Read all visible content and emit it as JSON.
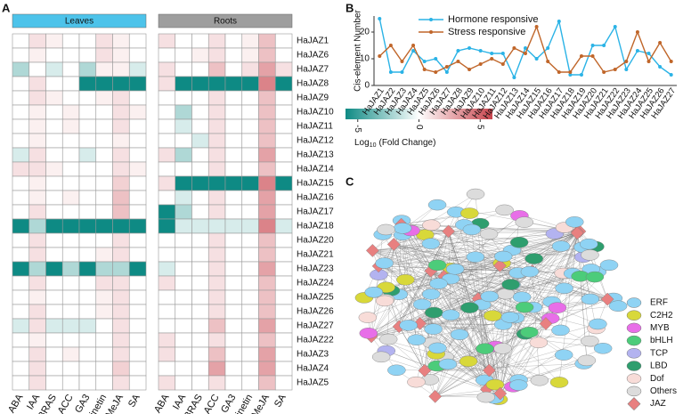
{
  "chart_data": [
    {
      "type": "heatmap",
      "panel": "A",
      "rows": [
        "HaJAZ1",
        "HaJAZ6",
        "HaJAZ7",
        "HaJAZ8",
        "HaJAZ9",
        "HaJAZ10",
        "HaJAZ11",
        "HaJAZ12",
        "HaJAZ13",
        "HaJAZ14",
        "HaJAZ15",
        "HaJAZ16",
        "HaJAZ17",
        "HaJAZ18",
        "HaJAZ20",
        "HaJAZ21",
        "HaJAZ23",
        "HaJAZ24",
        "HaJAZ25",
        "HaJAZ26",
        "HaJAZ27",
        "HaJAZ22",
        "HaJAZ3",
        "HaJAZ4",
        "HaJAZ5"
      ],
      "columns": [
        "ABA",
        "IAA",
        "BRAS",
        "ACC",
        "GA3",
        "kinetin",
        "MeJA",
        "SA"
      ],
      "groups": [
        {
          "name": "Leaves",
          "header_color": "#4dc3ea",
          "values": [
            [
              0,
              1,
              0.5,
              0,
              0,
              1,
              0.5,
              0
            ],
            [
              0,
              0.5,
              0,
              0,
              0,
              1,
              0.5,
              0
            ],
            [
              -2,
              0,
              -1,
              0,
              -2,
              0.5,
              0.5,
              -1
            ],
            [
              0,
              1,
              0,
              0,
              -6,
              -6,
              -6,
              -6
            ],
            [
              0,
              1,
              0.5,
              0,
              0,
              0.5,
              1,
              0
            ],
            [
              0,
              0.5,
              0,
              0.5,
              0,
              0,
              1,
              0.5
            ],
            [
              0,
              0.5,
              0,
              0.5,
              0,
              0,
              1,
              0
            ],
            [
              0,
              0.5,
              0,
              0,
              0,
              0,
              0.5,
              0
            ],
            [
              -1,
              1,
              0,
              0,
              -1,
              0,
              1,
              0
            ],
            [
              1,
              1,
              0.5,
              0,
              0,
              0,
              1,
              0.5
            ],
            [
              0,
              0.5,
              0,
              0,
              0,
              0,
              1.5,
              0
            ],
            [
              0,
              0.5,
              0,
              0.5,
              0,
              0,
              2,
              0
            ],
            [
              0,
              1,
              0,
              0,
              0,
              0,
              2,
              0
            ],
            [
              -6,
              -2,
              -6,
              -6,
              -6,
              -6,
              -6,
              -6
            ],
            [
              0,
              1,
              0,
              0,
              0,
              0,
              1,
              0
            ],
            [
              0,
              1,
              0,
              0,
              0,
              0.5,
              1,
              0
            ],
            [
              -6,
              -2,
              -6,
              -2,
              -6,
              -2,
              -2,
              -6
            ],
            [
              0,
              1,
              0,
              0,
              0,
              1,
              1,
              0
            ],
            [
              0,
              0.5,
              0,
              0,
              0,
              0.5,
              1,
              0
            ],
            [
              0,
              1,
              0,
              0,
              0,
              0.5,
              1,
              0
            ],
            [
              -1,
              1,
              -1,
              -1,
              -1,
              0,
              1,
              0
            ],
            [
              0,
              0.5,
              0,
              0,
              0,
              0,
              1,
              0
            ],
            [
              0,
              1,
              0,
              0.5,
              0,
              0,
              1,
              0
            ],
            [
              0,
              1,
              0,
              0,
              0,
              0,
              1.5,
              0
            ],
            [
              0,
              1,
              0,
              0,
              0,
              0,
              1,
              0
            ]
          ]
        },
        {
          "name": "Roots",
          "header_color": "#9e9e9e",
          "values": [
            [
              1,
              0,
              0,
              1,
              0,
              0.5,
              2,
              0
            ],
            [
              0,
              0,
              0.5,
              1,
              0,
              0.5,
              2,
              0
            ],
            [
              1,
              0,
              0,
              2,
              0,
              1,
              3,
              1
            ],
            [
              1,
              -6,
              -6,
              -6,
              -6,
              -6,
              4,
              -6
            ],
            [
              0,
              0,
              0,
              1,
              0,
              0,
              2,
              0
            ],
            [
              0,
              -2,
              0,
              1,
              0,
              0,
              2,
              0
            ],
            [
              0,
              -1,
              0,
              1,
              0,
              0,
              2,
              0
            ],
            [
              0,
              0,
              -1,
              1,
              0,
              0,
              2,
              0
            ],
            [
              1,
              -2,
              0,
              1,
              0,
              0,
              3,
              0
            ],
            [
              0,
              0,
              0,
              1,
              0,
              0,
              2,
              0
            ],
            [
              1,
              -6,
              -6,
              -6,
              -6,
              -6,
              4,
              -6
            ],
            [
              0,
              -1,
              0,
              1,
              0,
              0,
              3,
              0
            ],
            [
              -6,
              -2,
              0,
              1,
              0,
              0,
              3,
              0
            ],
            [
              -6,
              -1,
              -1,
              -1,
              -1,
              -1,
              4,
              -1
            ],
            [
              0,
              0,
              0,
              1,
              0,
              0,
              2,
              0
            ],
            [
              0,
              0,
              0,
              1,
              0,
              0,
              2,
              0
            ],
            [
              -1,
              0,
              0,
              1,
              0,
              0,
              3,
              0
            ],
            [
              1,
              0,
              0,
              1,
              0,
              0,
              2,
              0
            ],
            [
              0,
              0,
              0,
              1,
              0,
              0,
              2,
              0
            ],
            [
              0,
              0,
              0,
              1,
              0,
              0,
              2,
              0
            ],
            [
              0,
              0,
              0,
              2,
              0,
              0,
              3,
              0
            ],
            [
              1,
              0,
              0,
              1,
              0,
              0,
              2,
              0
            ],
            [
              1,
              0,
              0,
              2,
              0,
              0,
              3,
              0
            ],
            [
              0,
              0,
              0,
              3,
              0,
              0,
              3,
              0
            ],
            [
              1,
              0,
              0,
              1,
              0,
              0,
              2,
              0
            ]
          ]
        }
      ],
      "zlim": [
        -6,
        6
      ],
      "zticks": [
        -5,
        0,
        5
      ],
      "colors": [
        "#0e8a84",
        "#ffffff",
        "#c9454e"
      ],
      "colorbar_label": {
        "base": "Log",
        "sub": "10",
        "rest": "(Fold Change)"
      }
    },
    {
      "type": "line",
      "panel": "B",
      "ylabel": "Cis-element Number",
      "categories": [
        "HaJAZ1",
        "HaJAZ2",
        "HaJAZ3",
        "HaJAZ4",
        "HaJAZ5",
        "HaJAZ6",
        "HaJAZ7",
        "HaJAZ8",
        "HaJAZ9",
        "HaJAZ10",
        "HaJAZ11",
        "HaJAZ12",
        "HaJAZ13",
        "HaJAZ14",
        "HaJAZ15",
        "HaJAZ16",
        "HaJAZ17",
        "HaJAZ18",
        "HaJAZ19",
        "HaJAZ20",
        "HaJAZ21",
        "HaJAZ22",
        "HaJAZ23",
        "HaJAZ24",
        "HaJAZ25",
        "HaJAZ26",
        "HaJAZ27"
      ],
      "series": [
        {
          "name": "Hormone responsive",
          "color": "#2bb3e6",
          "values": [
            25,
            5,
            5,
            13,
            9,
            10,
            5,
            13,
            14,
            13,
            12,
            12,
            3,
            14,
            10,
            14,
            24,
            4,
            4,
            15,
            15,
            22,
            6,
            13,
            12,
            7,
            4
          ]
        },
        {
          "name": "Stress responsive",
          "color": "#c0662a",
          "values": [
            11,
            15,
            9,
            15,
            6,
            5,
            7,
            9,
            6,
            8,
            10,
            8,
            14,
            12,
            22,
            9,
            5,
            5,
            11,
            11,
            5,
            6,
            9,
            20,
            9,
            16,
            9
          ]
        }
      ],
      "ylim": [
        0,
        26
      ],
      "yticks": [
        0,
        10,
        20
      ]
    },
    {
      "type": "network",
      "panel": "C",
      "legend": [
        {
          "name": "ERF",
          "color": "#8fd3f4"
        },
        {
          "name": "C2H2",
          "color": "#d8d83a"
        },
        {
          "name": "MYB",
          "color": "#e86ee8"
        },
        {
          "name": "bHLH",
          "color": "#4ccc7a"
        },
        {
          "name": "TCP",
          "color": "#b3b3f0"
        },
        {
          "name": "LBD",
          "color": "#2e9e6e"
        },
        {
          "name": "Dof",
          "color": "#f8dcd8"
        },
        {
          "name": "Others",
          "color": "#dcdcdc"
        },
        {
          "name": "JAZ",
          "color": "#e88080"
        }
      ]
    }
  ]
}
